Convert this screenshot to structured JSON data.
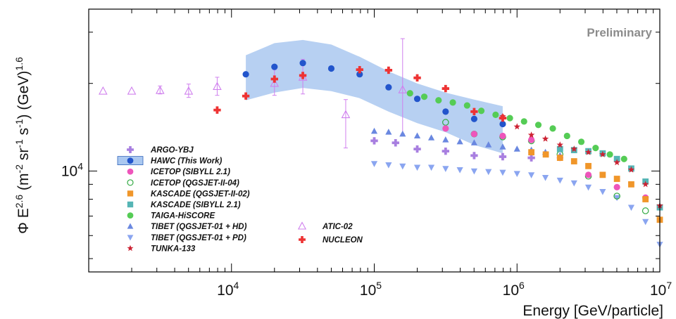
{
  "chart_data": {
    "type": "scatter",
    "title": "",
    "annotation": "Preliminary",
    "xlabel": "Energy [GeV/particle]",
    "ylabel_parts": {
      "phi": "Φ",
      "e": " E",
      "e_exp": "2.6",
      "units_open": " (m",
      "m_exp": "-2",
      "sr": " sr",
      "sr_exp": "-1",
      "s": " s",
      "s_exp": "-1",
      "units_mid": ") (GeV)",
      "gev_exp": "1.6"
    },
    "x_scale": "log",
    "y_scale": "log",
    "xlim": [
      1000,
      10000000
    ],
    "ylim": [
      4500,
      36000
    ],
    "grid": false,
    "x_ticks": [
      {
        "value": 10000,
        "base": "10",
        "exp": "4"
      },
      {
        "value": 100000,
        "base": "10",
        "exp": "5"
      },
      {
        "value": 1000000,
        "base": "10",
        "exp": "6"
      },
      {
        "value": 10000000,
        "base": "10",
        "exp": "7"
      }
    ],
    "y_ticks": [
      {
        "value": 10000,
        "base": "10",
        "exp": "4"
      }
    ],
    "legend_position": "left",
    "hawc_band": {
      "x": [
        12600,
        20000,
        31600,
        50000,
        79000,
        126000,
        200000,
        316000,
        501000,
        794000
      ],
      "upper": [
        25000,
        27500,
        28200,
        27200,
        24700,
        22000,
        20000,
        18600,
        17600,
        16700
      ],
      "lower": [
        17500,
        18600,
        19300,
        18800,
        17800,
        16000,
        14600,
        13600,
        12300,
        11500
      ]
    },
    "series": [
      {
        "name": "ARGO-YBJ",
        "marker": "cross",
        "color": "#a87fe0",
        "x": [
          100000,
          141000,
          200000,
          316000,
          501000,
          794000,
          1260000
        ],
        "y": [
          12700,
          12500,
          11900,
          11700,
          11300,
          11200,
          11100
        ]
      },
      {
        "name": "HAWC (This Work)",
        "marker": "circle",
        "color": "#2255cc",
        "band_color": "#aac8f0",
        "x": [
          12600,
          20000,
          31600,
          50000,
          79000,
          126000,
          200000,
          316000,
          501000,
          794000
        ],
        "y": [
          21500,
          22800,
          23500,
          22500,
          21500,
          19400,
          17700,
          16000,
          15100,
          14500
        ]
      },
      {
        "name": "ICETOP (SIBYLL 2.1)",
        "marker": "circle",
        "color": "#ee55bb",
        "x": [
          316000,
          501000,
          794000,
          1260000,
          2000000,
          3160000,
          5010000,
          7940000
        ],
        "y": [
          14000,
          13400,
          13200,
          12800,
          11100,
          9700,
          8800,
          8100
        ]
      },
      {
        "name": "ICETOP (QGSJET-II-04)",
        "marker": "open-circle",
        "color": "#33aa44",
        "x": [
          316000,
          501000,
          794000,
          1260000,
          2000000,
          3160000,
          5010000,
          7940000
        ],
        "y": [
          14700,
          13400,
          13100,
          12700,
          11400,
          9600,
          8200,
          7300
        ]
      },
      {
        "name": "KASCADE (QGSJET-II-02)",
        "marker": "square",
        "color": "#f0962a",
        "x": [
          1260000,
          1590000,
          2000000,
          2510000,
          3160000,
          3980000,
          5010000,
          6310000,
          7940000,
          10000000
        ],
        "y": [
          11600,
          11400,
          11100,
          10800,
          10400,
          9700,
          9400,
          9000,
          8000,
          6800
        ]
      },
      {
        "name": "KASCADE (SIBYLL 2.1)",
        "marker": "square",
        "color": "#55b5b5",
        "x": [
          2000000,
          2510000,
          3160000,
          3980000,
          5010000,
          6310000,
          7940000,
          10000000
        ],
        "y": [
          11900,
          11800,
          11700,
          11500,
          11000,
          10200,
          9200,
          7500
        ]
      },
      {
        "name": "TAIGA-HiSCORE",
        "marker": "circle",
        "color": "#55cc55",
        "x": [
          178000,
          224000,
          282000,
          355000,
          447000,
          562000,
          708000,
          891000,
          1120000,
          1410000,
          1780000,
          2240000,
          2820000,
          3550000,
          4470000,
          5620000
        ],
        "y": [
          18500,
          18000,
          17500,
          17200,
          16800,
          16100,
          15600,
          15200,
          14800,
          14400,
          14000,
          13200,
          12600,
          12000,
          11400,
          11000
        ]
      },
      {
        "name": "TIBET (QGSJET-01 + HD)",
        "marker": "triangle-up",
        "color": "#6a88e0",
        "x": [
          100000,
          126000,
          158000,
          200000,
          251000,
          316000,
          398000,
          501000,
          631000,
          794000,
          1000000,
          1260000,
          1580000,
          2000000
        ],
        "y": [
          13700,
          13600,
          13400,
          13200,
          13000,
          12800,
          12600,
          12500,
          12300,
          12100,
          11900,
          11800,
          11600,
          11300
        ]
      },
      {
        "name": "TIBET (QGSJET-01 + PD)",
        "marker": "triangle-down",
        "color": "#8aa5f0",
        "x": [
          100000,
          126000,
          158000,
          200000,
          251000,
          316000,
          398000,
          501000,
          631000,
          794000,
          1000000,
          1260000,
          1580000,
          2000000,
          2510000,
          3160000,
          3980000,
          5010000,
          6310000,
          7940000,
          10000000
        ],
        "y": [
          10600,
          10500,
          10400,
          10300,
          10300,
          10200,
          10100,
          10000,
          9950,
          9900,
          9800,
          9700,
          9500,
          9300,
          9100,
          8800,
          8500,
          8100,
          7500,
          6700,
          5600
        ]
      },
      {
        "name": "TUNKA-133",
        "marker": "star",
        "color": "#cc2233",
        "x": [
          794000,
          1000000,
          1260000,
          1580000,
          2000000,
          2510000,
          3160000,
          3980000,
          5010000,
          6310000,
          7940000,
          10000000
        ],
        "y": [
          15400,
          14200,
          13300,
          12900,
          12300,
          11900,
          11600,
          11400,
          10700,
          10100,
          9000,
          7600
        ]
      },
      {
        "name": "ATIC-02",
        "marker": "open-triangle",
        "color": "#d080ee",
        "x": [
          1260,
          2000,
          3160,
          5010,
          7940,
          20000,
          31600,
          63100,
          158000
        ],
        "y": [
          18800,
          18800,
          18900,
          18800,
          19500,
          20000,
          21000,
          15600,
          19000
        ],
        "y_err_up": [
          0,
          0,
          700,
          1100,
          1500,
          2300,
          3200,
          2000,
          9500
        ],
        "y_err_down": [
          0,
          0,
          500,
          900,
          1300,
          1800,
          2600,
          3600,
          5600
        ]
      },
      {
        "name": "NUCLEON",
        "marker": "cross",
        "color": "#ee3333",
        "x": [
          7940,
          12600,
          20000,
          31600,
          79000,
          126000,
          200000,
          316000,
          501000,
          794000
        ],
        "y": [
          16200,
          18100,
          20700,
          21300,
          22300,
          22200,
          20900,
          19200,
          16000,
          15200
        ]
      }
    ]
  }
}
